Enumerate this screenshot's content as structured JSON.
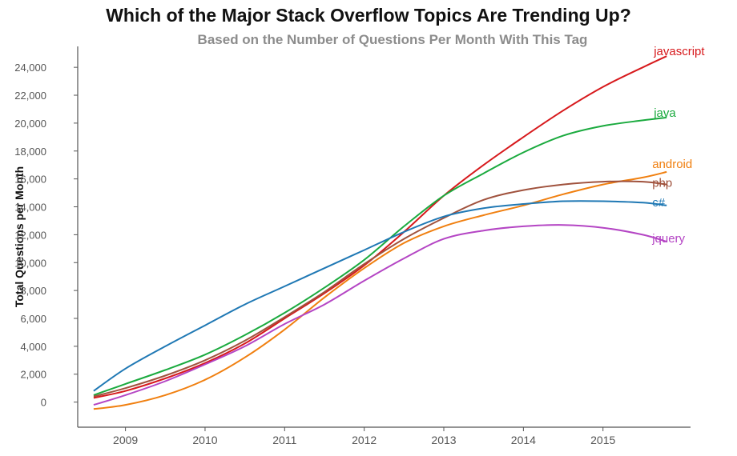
{
  "chart_data": {
    "type": "line",
    "title": "Which of the Major Stack Overflow Topics Are Trending Up?",
    "subtitle": "Based on the Number of Questions Per Month With This Tag",
    "xlabel": "",
    "ylabel": "Total Questions per Month",
    "xlim": [
      2008.4,
      2016.1
    ],
    "ylim": [
      -1800,
      25500
    ],
    "x_ticks": [
      "2009",
      "2010",
      "2011",
      "2012",
      "2013",
      "2014",
      "2015"
    ],
    "y_ticks": [
      "0",
      "2,000",
      "4,000",
      "6,000",
      "8,000",
      "10,000",
      "12,000",
      "14,000",
      "16,000",
      "18,000",
      "20,000",
      "22,000",
      "24,000"
    ],
    "grid": false,
    "legend": "labels at line ends",
    "series": [
      {
        "name": "javascript",
        "color": "#d7191c",
        "x": [
          2008.6,
          2009.0,
          2009.5,
          2010.0,
          2010.5,
          2011.0,
          2011.5,
          2012.0,
          2012.5,
          2013.0,
          2013.5,
          2014.0,
          2014.5,
          2015.0,
          2015.5,
          2015.8
        ],
        "y": [
          300,
          800,
          1700,
          2800,
          4200,
          6000,
          7800,
          9800,
          12200,
          14800,
          17000,
          19000,
          20900,
          22600,
          24000,
          24800
        ]
      },
      {
        "name": "java",
        "color": "#1aaa3e",
        "x": [
          2008.6,
          2009.0,
          2009.5,
          2010.0,
          2010.5,
          2011.0,
          2011.5,
          2012.0,
          2012.5,
          2013.0,
          2013.5,
          2014.0,
          2014.5,
          2015.0,
          2015.5,
          2015.8
        ],
        "y": [
          500,
          1300,
          2300,
          3400,
          4800,
          6400,
          8200,
          10200,
          12600,
          14800,
          16400,
          17900,
          19100,
          19800,
          20200,
          20400
        ]
      },
      {
        "name": "android",
        "color": "#f07f0f",
        "x": [
          2008.6,
          2009.0,
          2009.5,
          2010.0,
          2010.5,
          2011.0,
          2011.5,
          2012.0,
          2012.5,
          2013.0,
          2013.5,
          2014.0,
          2014.5,
          2015.0,
          2015.5,
          2015.8
        ],
        "y": [
          -500,
          -200,
          500,
          1600,
          3200,
          5200,
          7500,
          9600,
          11400,
          12600,
          13400,
          14100,
          14900,
          15600,
          16100,
          16500
        ]
      },
      {
        "name": "php",
        "color": "#a0523d",
        "x": [
          2008.6,
          2009.0,
          2009.5,
          2010.0,
          2010.5,
          2011.0,
          2011.5,
          2012.0,
          2012.5,
          2013.0,
          2013.5,
          2014.0,
          2014.5,
          2015.0,
          2015.5,
          2015.8
        ],
        "y": [
          400,
          1000,
          1900,
          3000,
          4400,
          6100,
          7900,
          9900,
          11700,
          13200,
          14500,
          15200,
          15600,
          15800,
          15800,
          15600
        ]
      },
      {
        "name": "c#",
        "color": "#1f78b4",
        "x": [
          2008.6,
          2009.0,
          2009.5,
          2010.0,
          2010.5,
          2011.0,
          2011.5,
          2012.0,
          2012.5,
          2013.0,
          2013.5,
          2014.0,
          2014.5,
          2015.0,
          2015.5,
          2015.8
        ],
        "y": [
          800,
          2400,
          4000,
          5500,
          7000,
          8300,
          9600,
          10900,
          12200,
          13300,
          13900,
          14200,
          14400,
          14400,
          14300,
          14100
        ]
      },
      {
        "name": "jquery",
        "color": "#b445c4",
        "x": [
          2008.6,
          2009.0,
          2009.5,
          2010.0,
          2010.5,
          2011.0,
          2011.5,
          2012.0,
          2012.5,
          2013.0,
          2013.5,
          2014.0,
          2014.5,
          2015.0,
          2015.5,
          2015.8
        ],
        "y": [
          -200,
          500,
          1500,
          2700,
          4000,
          5600,
          7000,
          8700,
          10300,
          11700,
          12300,
          12600,
          12700,
          12500,
          12000,
          11500
        ]
      }
    ]
  }
}
